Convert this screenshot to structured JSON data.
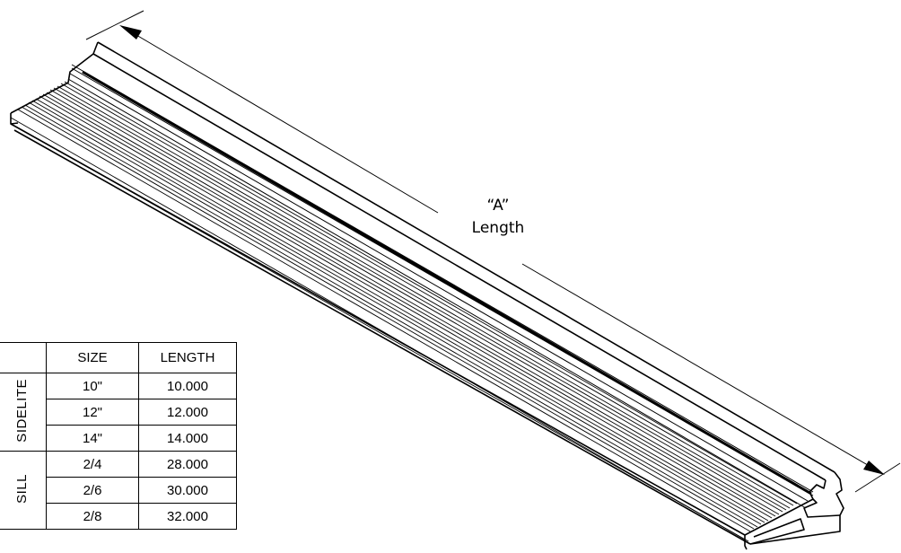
{
  "dimension": {
    "label_line1": "“A”",
    "label_line2": "Length"
  },
  "table": {
    "headers": [
      "",
      "SIZE",
      "LENGTH"
    ],
    "groups": [
      {
        "name": "SIDELITE",
        "rows": [
          {
            "size": "10\"",
            "length": "10.000"
          },
          {
            "size": "12\"",
            "length": "12.000"
          },
          {
            "size": "14\"",
            "length": "14.000"
          }
        ]
      },
      {
        "name": "SILL",
        "rows": [
          {
            "size": "2/4",
            "length": "28.000"
          },
          {
            "size": "2/6",
            "length": "30.000"
          },
          {
            "size": "2/8",
            "length": "32.000"
          }
        ]
      }
    ]
  }
}
